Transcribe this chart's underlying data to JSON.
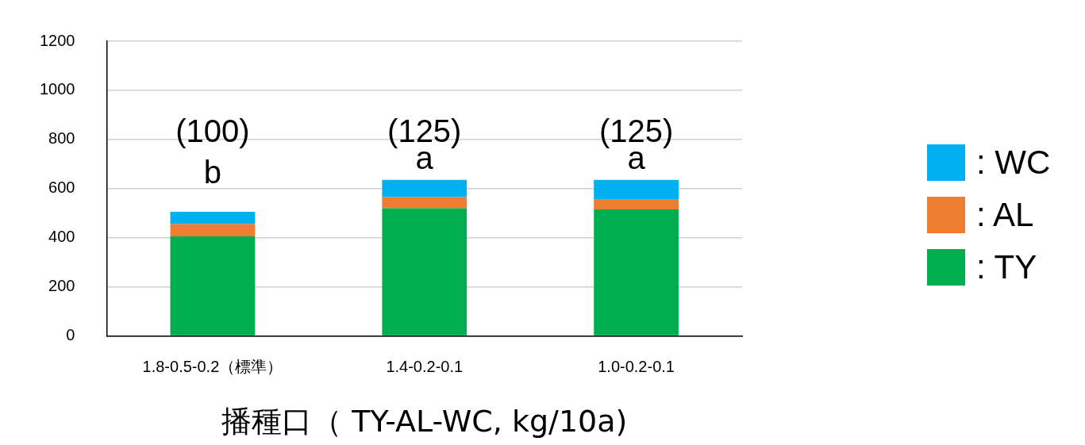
{
  "chart_data": {
    "type": "bar",
    "stacked": true,
    "xlabel": "播種口（ TY-AL-WC, kg/10a)",
    "categories": [
      "1.8-0.5-0.2（標準）",
      "1.4-0.2-0.1",
      "1.0-0.2-0.1"
    ],
    "series": [
      {
        "name": ": TY",
        "color": "#00ad4f",
        "values": [
          405,
          520,
          515
        ]
      },
      {
        "name": ": AL",
        "color": "#ed7d31",
        "values": [
          50,
          45,
          40
        ]
      },
      {
        "name": ": WC",
        "color": "#00b0f0",
        "values": [
          50,
          70,
          80
        ]
      }
    ],
    "ylim": [
      0,
      1200
    ],
    "yticks": [
      0,
      200,
      400,
      600,
      800,
      1000,
      1200
    ],
    "grid": "y",
    "legend": "right",
    "annotations": [
      "(100)",
      "b",
      "(125)",
      "a",
      "(125)",
      "a"
    ]
  }
}
